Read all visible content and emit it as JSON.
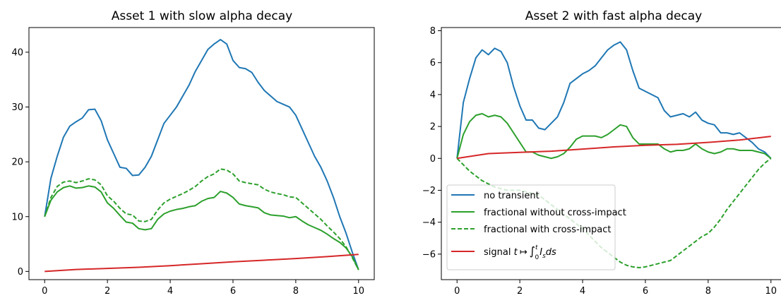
{
  "chart_data": [
    {
      "type": "line",
      "title": "Asset 1 with slow alpha decay",
      "xlabel": "",
      "ylabel": "",
      "xlim": [
        -0.5,
        10.5
      ],
      "ylim": [
        -1.5,
        44.5
      ],
      "xticks": [
        0,
        2,
        4,
        6,
        8,
        10
      ],
      "xtick_labels": [
        "0",
        "2",
        "4",
        "6",
        "8",
        "10"
      ],
      "yticks": [
        0,
        10,
        20,
        30,
        40
      ],
      "ytick_labels": [
        "0",
        "10",
        "20",
        "30",
        "40"
      ],
      "grid": false,
      "legend": null,
      "series": [
        {
          "color": "#1f77b4",
          "dash": "solid",
          "x": [
            0,
            0.2,
            0.4,
            0.6,
            0.8,
            1.0,
            1.2,
            1.4,
            1.6,
            1.8,
            2.0,
            2.2,
            2.4,
            2.6,
            2.8,
            3.0,
            3.2,
            3.4,
            3.6,
            3.8,
            4.0,
            4.2,
            4.4,
            4.6,
            4.8,
            5.0,
            5.2,
            5.4,
            5.6,
            5.8,
            6.0,
            6.2,
            6.4,
            6.6,
            6.8,
            7.0,
            7.2,
            7.4,
            7.6,
            7.8,
            8.0,
            8.2,
            8.4,
            8.6,
            8.8,
            9.0,
            9.2,
            9.4,
            9.6,
            9.8,
            10.0
          ],
          "y": [
            10,
            17,
            21,
            24.5,
            26.5,
            27.3,
            28,
            29.5,
            29.6,
            27.5,
            24,
            21.5,
            19,
            18.8,
            17.5,
            17.6,
            19,
            21,
            24,
            27,
            28.5,
            30,
            32,
            34,
            36.5,
            38.5,
            40.5,
            41.5,
            42.3,
            41.5,
            38.5,
            37.2,
            37,
            36.3,
            34.5,
            33,
            32,
            31,
            30.5,
            30,
            28.5,
            26,
            23.5,
            21,
            19,
            16.5,
            13.5,
            10,
            7,
            3.5,
            0.3
          ]
        },
        {
          "color": "#2ca02c",
          "dash": "solid",
          "x": [
            0,
            0.2,
            0.4,
            0.6,
            0.8,
            1.0,
            1.2,
            1.4,
            1.6,
            1.8,
            2.0,
            2.2,
            2.4,
            2.6,
            2.8,
            3.0,
            3.2,
            3.4,
            3.6,
            3.8,
            4.0,
            4.2,
            4.4,
            4.6,
            4.8,
            5.0,
            5.2,
            5.4,
            5.6,
            5.8,
            6.0,
            6.2,
            6.4,
            6.6,
            6.8,
            7.0,
            7.2,
            7.4,
            7.6,
            7.8,
            8.0,
            8.2,
            8.4,
            8.6,
            8.8,
            9.0,
            9.2,
            9.4,
            9.6,
            9.8,
            10.0
          ],
          "y": [
            10,
            13,
            14.5,
            15.3,
            15.6,
            15.2,
            15.3,
            15.6,
            15.4,
            14.5,
            12.5,
            11.5,
            10.2,
            9,
            8.8,
            7.8,
            7.6,
            7.8,
            9.5,
            10.5,
            11,
            11.3,
            11.5,
            11.8,
            12,
            12.8,
            13.3,
            13.5,
            14.6,
            14.3,
            13.5,
            12.3,
            12,
            11.8,
            11.6,
            10.7,
            10.3,
            10.2,
            10.1,
            9.8,
            10,
            9.2,
            8.5,
            8,
            7.5,
            6.8,
            6,
            5.3,
            4.3,
            2.7,
            0.3
          ]
        },
        {
          "color": "#2ca02c",
          "dash": "dashed",
          "x": [
            0,
            0.2,
            0.4,
            0.6,
            0.8,
            1.0,
            1.2,
            1.4,
            1.6,
            1.8,
            2.0,
            2.2,
            2.4,
            2.6,
            2.8,
            3.0,
            3.2,
            3.4,
            3.6,
            3.8,
            4.0,
            4.2,
            4.4,
            4.6,
            4.8,
            5.0,
            5.2,
            5.4,
            5.6,
            5.8,
            6.0,
            6.2,
            6.4,
            6.6,
            6.8,
            7.0,
            7.2,
            7.4,
            7.6,
            7.8,
            8.0,
            8.2,
            8.4,
            8.6,
            8.8,
            9.0,
            9.2,
            9.4,
            9.6,
            9.8,
            10.0
          ],
          "y": [
            10,
            13.5,
            15.5,
            16.3,
            16.5,
            16.2,
            16.5,
            16.9,
            16.7,
            15.8,
            13.8,
            12.8,
            11.5,
            10.5,
            10.3,
            9.2,
            9.1,
            9.5,
            11.2,
            12.5,
            13.2,
            13.7,
            14.2,
            14.8,
            15.5,
            16.5,
            17.3,
            17.8,
            18.7,
            18.5,
            17.8,
            16.5,
            16.2,
            16,
            15.8,
            15,
            14.5,
            14.2,
            14,
            13.6,
            13.5,
            12.5,
            11.5,
            10.5,
            9.5,
            8.3,
            7.2,
            6,
            4.5,
            2.5,
            0.3
          ]
        },
        {
          "color": "#d62728",
          "dash": "solid",
          "x": [
            0,
            1,
            2,
            3,
            4,
            5,
            6,
            7,
            8,
            9,
            10
          ],
          "y": [
            0,
            0.35,
            0.55,
            0.75,
            1.05,
            1.4,
            1.75,
            2.05,
            2.35,
            2.7,
            3.1
          ]
        }
      ]
    },
    {
      "type": "line",
      "title": "Asset 2 with fast alpha decay",
      "xlabel": "",
      "ylabel": "",
      "xlim": [
        -0.5,
        10.5
      ],
      "ylim": [
        -7.6,
        8.2
      ],
      "xticks": [
        0,
        2,
        4,
        6,
        8,
        10
      ],
      "xtick_labels": [
        "0",
        "2",
        "4",
        "6",
        "8",
        "10"
      ],
      "yticks": [
        -6,
        -4,
        -2,
        0,
        2,
        4,
        6,
        8
      ],
      "ytick_labels": [
        "−6",
        "−4",
        "−2",
        "0",
        "2",
        "4",
        "6",
        "8"
      ],
      "grid": false,
      "legend": {
        "placement": "lower left",
        "entries": [
          {
            "label": "no transient",
            "color": "#1f77b4",
            "dash": "solid",
            "math": false
          },
          {
            "label": "fractional without cross-impact",
            "color": "#2ca02c",
            "dash": "solid",
            "math": false
          },
          {
            "label": "fractional with cross-impact",
            "color": "#2ca02c",
            "dash": "dashed",
            "math": false
          },
          {
            "label": "signal t ↦ ∫ I ds",
            "prefix": "signal ",
            "math_t": "t",
            "math_to": "↦",
            "math_int": "∫",
            "math_sup": "t",
            "math_sub": "0",
            "math_I": "I",
            "math_I_sub": "s",
            "math_ds": "ds",
            "color": "#d62728",
            "dash": "solid",
            "math": true
          }
        ]
      },
      "series": [
        {
          "name": "no transient",
          "color": "#1f77b4",
          "dash": "solid",
          "x": [
            0,
            0.2,
            0.4,
            0.6,
            0.8,
            1.0,
            1.2,
            1.4,
            1.6,
            1.8,
            2.0,
            2.2,
            2.4,
            2.6,
            2.8,
            3.0,
            3.2,
            3.4,
            3.6,
            3.8,
            4.0,
            4.2,
            4.4,
            4.6,
            4.8,
            5.0,
            5.2,
            5.4,
            5.6,
            5.8,
            6.0,
            6.2,
            6.4,
            6.6,
            6.8,
            7.0,
            7.2,
            7.4,
            7.6,
            7.8,
            8.0,
            8.2,
            8.4,
            8.6,
            8.8,
            9.0,
            9.2,
            9.4,
            9.6,
            9.8,
            10.0
          ],
          "y": [
            0,
            3.5,
            5,
            6.3,
            6.8,
            6.5,
            6.9,
            6.7,
            6,
            4.5,
            3.3,
            2.4,
            2.4,
            1.9,
            1.8,
            2.2,
            2.6,
            3.5,
            4.7,
            5,
            5.3,
            5.5,
            5.8,
            6.3,
            6.8,
            7.1,
            7.3,
            6.8,
            5.5,
            4.4,
            4.2,
            4,
            3.8,
            3,
            2.6,
            2.7,
            2.8,
            2.6,
            2.9,
            2.4,
            2.2,
            2.1,
            1.6,
            1.6,
            1.5,
            1.6,
            1.3,
            1,
            0.6,
            0.4,
            0
          ]
        },
        {
          "name": "fractional without cross-impact",
          "color": "#2ca02c",
          "dash": "solid",
          "x": [
            0,
            0.2,
            0.4,
            0.6,
            0.8,
            1.0,
            1.2,
            1.4,
            1.6,
            1.8,
            2.0,
            2.2,
            2.4,
            2.6,
            2.8,
            3.0,
            3.2,
            3.4,
            3.6,
            3.8,
            4.0,
            4.2,
            4.4,
            4.6,
            4.8,
            5.0,
            5.2,
            5.4,
            5.6,
            5.8,
            6.0,
            6.2,
            6.4,
            6.6,
            6.8,
            7.0,
            7.2,
            7.4,
            7.6,
            7.8,
            8.0,
            8.2,
            8.4,
            8.6,
            8.8,
            9.0,
            9.2,
            9.4,
            9.6,
            9.8,
            10.0
          ],
          "y": [
            0,
            1.5,
            2.3,
            2.7,
            2.8,
            2.6,
            2.7,
            2.6,
            2.2,
            1.6,
            1,
            0.4,
            0.4,
            0.2,
            0.1,
            0,
            0.1,
            0.3,
            0.7,
            1.2,
            1.4,
            1.4,
            1.4,
            1.3,
            1.5,
            1.8,
            2.1,
            2,
            1.3,
            0.9,
            0.9,
            0.9,
            0.9,
            0.6,
            0.4,
            0.5,
            0.5,
            0.6,
            0.9,
            0.6,
            0.4,
            0.3,
            0.4,
            0.6,
            0.6,
            0.5,
            0.5,
            0.5,
            0.4,
            0.3,
            0
          ]
        },
        {
          "name": "fractional with cross-impact",
          "color": "#2ca02c",
          "dash": "dashed",
          "x": [
            0,
            0.2,
            0.4,
            0.6,
            0.8,
            1.0,
            1.2,
            1.4,
            1.6,
            1.8,
            2.0,
            2.2,
            2.4,
            2.6,
            2.8,
            3.0,
            3.2,
            3.4,
            3.6,
            3.8,
            4.0,
            4.2,
            4.4,
            4.6,
            4.8,
            5.0,
            5.2,
            5.4,
            5.6,
            5.8,
            6.0,
            6.2,
            6.4,
            6.6,
            6.8,
            7.0,
            7.2,
            7.4,
            7.6,
            7.8,
            8.0,
            8.2,
            8.4,
            8.6,
            8.8,
            9.0,
            9.2,
            9.4,
            9.6,
            9.8,
            10.0
          ],
          "y": [
            0,
            -0.4,
            -0.8,
            -1.1,
            -1.4,
            -1.6,
            -1.8,
            -1.9,
            -2.0,
            -2.0,
            -2.0,
            -2.1,
            -2.2,
            -2.3,
            -2.6,
            -2.9,
            -3.2,
            -3.5,
            -3.8,
            -4.1,
            -4.4,
            -4.8,
            -5.2,
            -5.6,
            -5.9,
            -6.2,
            -6.5,
            -6.7,
            -6.8,
            -6.85,
            -6.8,
            -6.7,
            -6.6,
            -6.5,
            -6.4,
            -6.1,
            -5.8,
            -5.5,
            -5.2,
            -4.9,
            -4.7,
            -4.3,
            -3.8,
            -3.2,
            -2.7,
            -2.2,
            -1.7,
            -1.2,
            -0.7,
            -0.3,
            0
          ]
        },
        {
          "name": "signal t ↦ ∫ I ds",
          "color": "#d62728",
          "dash": "solid",
          "x": [
            0,
            1,
            2,
            3,
            4,
            5,
            6,
            7,
            8,
            9,
            10
          ],
          "y": [
            0,
            0.3,
            0.38,
            0.45,
            0.58,
            0.72,
            0.82,
            0.88,
            1.0,
            1.15,
            1.38
          ]
        }
      ]
    }
  ]
}
